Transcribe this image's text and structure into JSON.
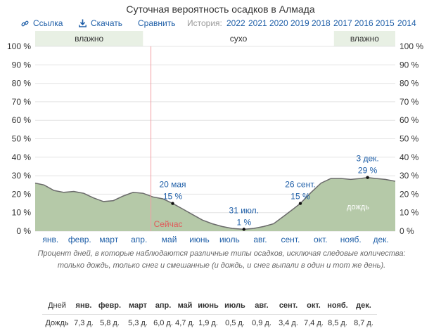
{
  "title": "Суточная вероятность осадков в Алмада",
  "toolbar": {
    "link_label": "Ссылка",
    "download_label": "Скачать",
    "compare_label": "Сравнить",
    "history_label": "История:",
    "years": [
      "2022",
      "2021",
      "2020",
      "2019",
      "2018",
      "2017",
      "2016",
      "2015",
      "2014"
    ]
  },
  "bands": {
    "wet_left": "влажно",
    "dry": "сухо",
    "wet_right": "влажно"
  },
  "colors": {
    "fill": "#b5c9a8",
    "line": "#6b6b6b",
    "now_line": "#f3a0a6",
    "now_text": "#e05a5a",
    "accent": "#1f5fa8",
    "band": "#e8f0e4"
  },
  "chart_data": {
    "type": "area",
    "title": "Суточная вероятность осадков в Алмада",
    "ylim": [
      0,
      100
    ],
    "yticks": [
      "0 %",
      "10 %",
      "20 %",
      "30 %",
      "40 %",
      "50 %",
      "60 %",
      "70 %",
      "80 %",
      "90 %",
      "100 %"
    ],
    "month_labels": [
      "янв.",
      "февр.",
      "март",
      "апр.",
      "май",
      "июнь",
      "июль",
      "авг.",
      "сент.",
      "окт.",
      "нояб.",
      "дек."
    ],
    "series": [
      {
        "name": "дождь",
        "x_day": [
          1,
          10,
          20,
          30,
          40,
          50,
          60,
          70,
          80,
          90,
          100,
          110,
          120,
          130,
          140,
          150,
          160,
          170,
          180,
          190,
          200,
          212,
          222,
          232,
          242,
          252,
          262,
          269,
          280,
          290,
          300,
          310,
          320,
          330,
          337,
          345,
          355,
          365
        ],
        "values": [
          26,
          25,
          22,
          21,
          21.5,
          20.5,
          18,
          16,
          16.5,
          19,
          21,
          20.5,
          18.5,
          17.5,
          15,
          12,
          9,
          6,
          4,
          2.5,
          1.5,
          1,
          1.5,
          2.5,
          4,
          8,
          12,
          15,
          21,
          26,
          28.5,
          28.5,
          28,
          28.5,
          29,
          28.5,
          28,
          27
        ]
      }
    ],
    "annotations": [
      {
        "date": "20 мая",
        "value": "15 %",
        "day": 140,
        "y": 15
      },
      {
        "date": "31 июл.",
        "value": "1 %",
        "day": 212,
        "y": 1
      },
      {
        "date": "26 сент.",
        "value": "15 %",
        "day": 269,
        "y": 15
      },
      {
        "date": "3 дек.",
        "value": "29 %",
        "day": 337,
        "y": 29
      }
    ],
    "now": {
      "label": "Сейчас",
      "day": 118
    },
    "series_label": "дождь",
    "wet_ranges_day": [
      [
        1,
        110
      ],
      [
        303,
        365
      ]
    ],
    "table": {
      "header_label": "Дней",
      "row_label": "Дождь",
      "values": [
        "7,3 д.",
        "5,8 д.",
        "5,3 д.",
        "6,0 д.",
        "4,7 д.",
        "1,9 д.",
        "0,5 д.",
        "0,9 д.",
        "3,4 д.",
        "7,4 д.",
        "8,5 д.",
        "8,7 д."
      ]
    }
  },
  "note": "Процент дней, в которые наблюдаются различные типы осадков, исключая следовые количества: только дождь, только снег и смешанные (и дождь, и снег выпали в один и тот же день)."
}
